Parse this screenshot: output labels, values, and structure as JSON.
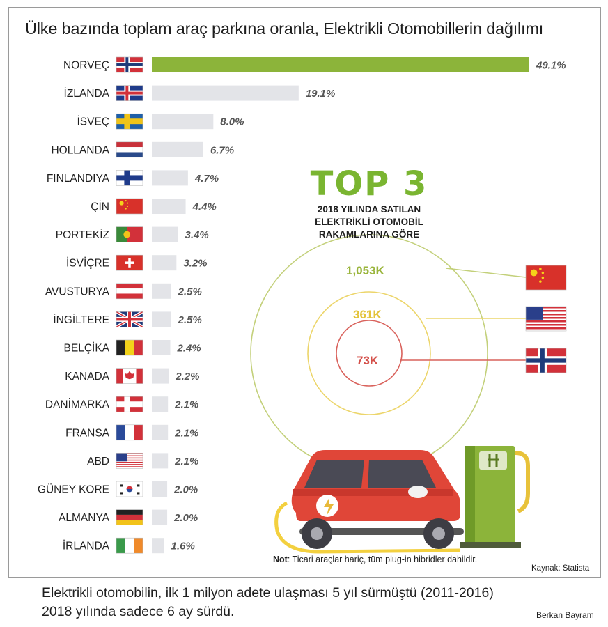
{
  "title": "Ülke bazında toplam araç parkına oranla, Elektrikli Otomobillerin dağılımı",
  "chart_data": {
    "type": "bar",
    "orientation": "horizontal",
    "categories": [
      "NORVEÇ",
      "İZLANDA",
      "İSVEÇ",
      "HOLLANDA",
      "FINLANDIYA",
      "ÇİN",
      "PORTEKİZ",
      "İSVİÇRE",
      "AVUSTURYA",
      "İNGİLTERE",
      "BELÇİKA",
      "KANADA",
      "DANİMARKA",
      "FRANSA",
      "ABD",
      "GÜNEY KORE",
      "ALMANYA",
      "İRLANDA"
    ],
    "values": [
      49.1,
      19.1,
      8.0,
      6.7,
      4.7,
      4.4,
      3.4,
      3.2,
      2.5,
      2.5,
      2.4,
      2.2,
      2.1,
      2.1,
      2.1,
      2.0,
      2.0,
      1.6
    ],
    "value_labels": [
      "49.1%",
      "19.1%",
      "8.0%",
      "6.7%",
      "4.7%",
      "4.4%",
      "3.4%",
      "3.2%",
      "2.5%",
      "2.5%",
      "2.4%",
      "2.2%",
      "2.1%",
      "2.1%",
      "2.1%",
      "2.0%",
      "2.0%",
      "1.6%"
    ],
    "unit": "%",
    "xlim": [
      0,
      49.1
    ],
    "highlight_color": "#8cb43a",
    "bar_color": "#e3e4e8"
  },
  "top3": {
    "title": "TOP 3",
    "subtitle_lines": [
      "2018 YILINDA SATILAN",
      "ELEKTRİKLİ OTOMOBİL",
      "RAKAMLARINA GÖRE"
    ],
    "items": [
      {
        "value": "1,053K",
        "flag": "china-flag",
        "color": "#9ab53c"
      },
      {
        "value": "361K",
        "flag": "usa-flag",
        "color": "#e3c33a"
      },
      {
        "value": "73K",
        "flag": "norway-flag",
        "color": "#d4504a"
      }
    ]
  },
  "note_bold": "Not",
  "note_text": ": Ticari araçlar hariç, tüm plug-in hibridler dahildir.",
  "source": "Kaynak: Statista",
  "footer_lines": [
    "Elektrikli otomobilin, ilk 1 milyon adete ulaşması 5 yıl sürmüştü (2011-2016)",
    "2018 yılında sadece 6 ay sürdü."
  ],
  "author": "Berkan Bayram",
  "flags": [
    "norway-flag",
    "iceland-flag",
    "sweden-flag",
    "netherlands-flag",
    "finland-flag",
    "china-flag",
    "portugal-flag",
    "switzerland-flag",
    "austria-flag",
    "uk-flag",
    "belgium-flag",
    "canada-flag",
    "denmark-flag",
    "france-flag",
    "usa-flag",
    "south-korea-flag",
    "germany-flag",
    "ireland-flag"
  ]
}
